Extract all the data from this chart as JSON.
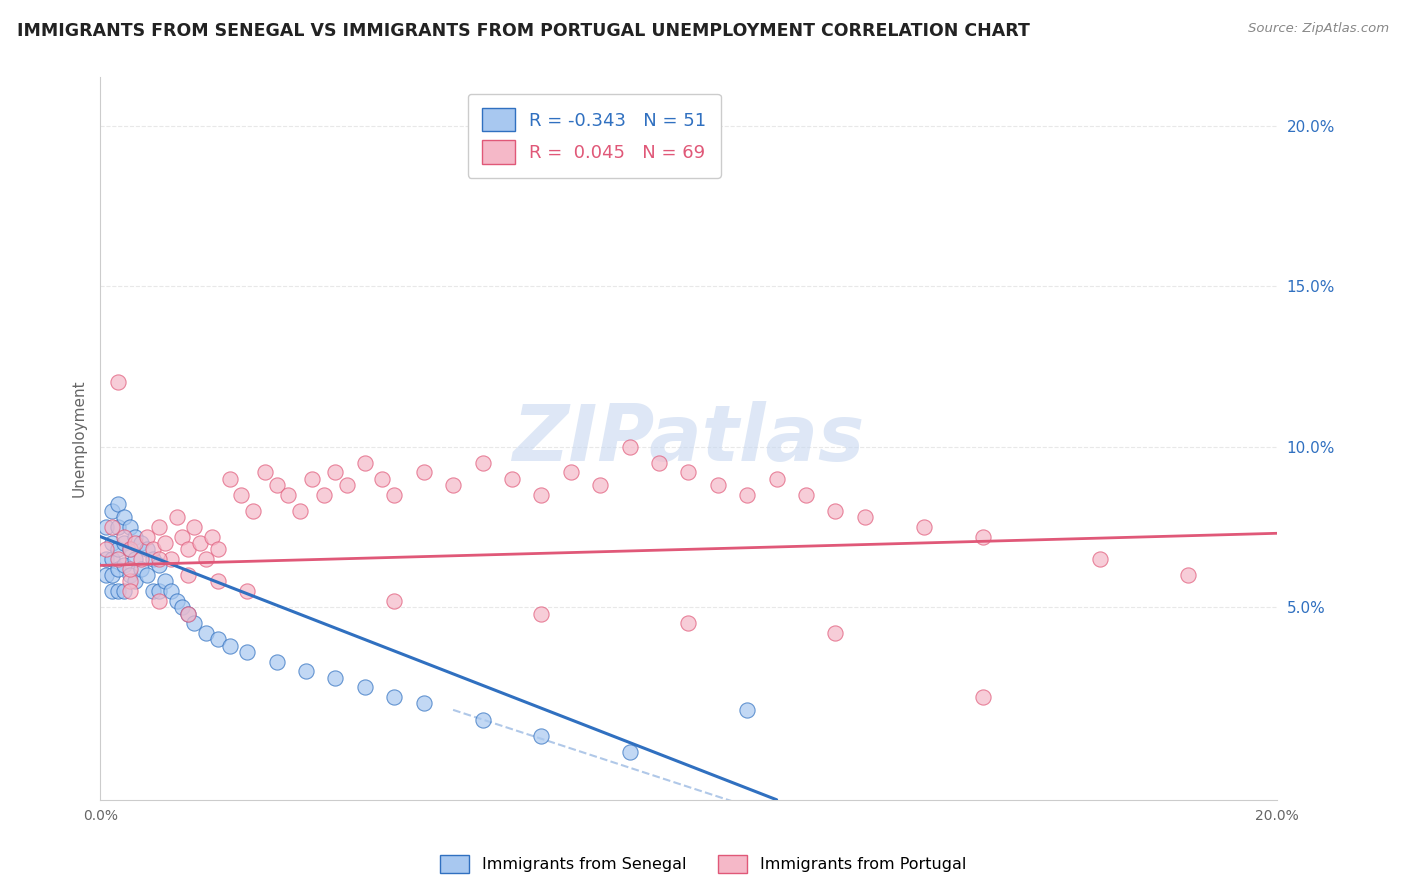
{
  "title": "IMMIGRANTS FROM SENEGAL VS IMMIGRANTS FROM PORTUGAL UNEMPLOYMENT CORRELATION CHART",
  "source": "Source: ZipAtlas.com",
  "ylabel": "Unemployment",
  "y_ticks": [
    0.05,
    0.1,
    0.15,
    0.2
  ],
  "y_tick_labels": [
    "5.0%",
    "10.0%",
    "15.0%",
    "20.0%"
  ],
  "xlim": [
    0.0,
    0.2
  ],
  "ylim": [
    -0.01,
    0.215
  ],
  "senegal_R": -0.343,
  "senegal_N": 51,
  "portugal_R": 0.045,
  "portugal_N": 69,
  "senegal_color": "#a8c8f0",
  "portugal_color": "#f5b8c8",
  "senegal_line_color": "#3070c0",
  "portugal_line_color": "#e05878",
  "dash_color": "#b0c8e8",
  "watermark_color": "#c8d8f0",
  "grid_color": "#e8e8e8",
  "background_color": "#ffffff",
  "senegal_x": [
    0.001,
    0.001,
    0.001,
    0.002,
    0.002,
    0.002,
    0.002,
    0.002,
    0.003,
    0.003,
    0.003,
    0.003,
    0.003,
    0.004,
    0.004,
    0.004,
    0.004,
    0.005,
    0.005,
    0.005,
    0.006,
    0.006,
    0.006,
    0.007,
    0.007,
    0.008,
    0.008,
    0.009,
    0.009,
    0.01,
    0.01,
    0.011,
    0.012,
    0.013,
    0.014,
    0.015,
    0.016,
    0.018,
    0.02,
    0.022,
    0.025,
    0.03,
    0.035,
    0.04,
    0.045,
    0.05,
    0.055,
    0.065,
    0.075,
    0.09,
    0.11
  ],
  "senegal_y": [
    0.075,
    0.065,
    0.06,
    0.08,
    0.07,
    0.065,
    0.06,
    0.055,
    0.082,
    0.075,
    0.068,
    0.062,
    0.055,
    0.078,
    0.07,
    0.063,
    0.055,
    0.075,
    0.068,
    0.06,
    0.072,
    0.065,
    0.058,
    0.07,
    0.062,
    0.068,
    0.06,
    0.065,
    0.055,
    0.063,
    0.055,
    0.058,
    0.055,
    0.052,
    0.05,
    0.048,
    0.045,
    0.042,
    0.04,
    0.038,
    0.036,
    0.033,
    0.03,
    0.028,
    0.025,
    0.022,
    0.02,
    0.015,
    0.01,
    0.005,
    0.018
  ],
  "portugal_x": [
    0.001,
    0.002,
    0.003,
    0.003,
    0.004,
    0.005,
    0.005,
    0.006,
    0.007,
    0.008,
    0.009,
    0.01,
    0.011,
    0.012,
    0.013,
    0.014,
    0.015,
    0.016,
    0.017,
    0.018,
    0.019,
    0.02,
    0.022,
    0.024,
    0.026,
    0.028,
    0.03,
    0.032,
    0.034,
    0.036,
    0.038,
    0.04,
    0.042,
    0.045,
    0.048,
    0.05,
    0.055,
    0.06,
    0.065,
    0.07,
    0.075,
    0.08,
    0.085,
    0.09,
    0.095,
    0.1,
    0.105,
    0.11,
    0.115,
    0.12,
    0.125,
    0.13,
    0.14,
    0.15,
    0.005,
    0.01,
    0.015,
    0.02,
    0.025,
    0.05,
    0.075,
    0.1,
    0.125,
    0.15,
    0.17,
    0.185,
    0.005,
    0.01,
    0.015
  ],
  "portugal_y": [
    0.068,
    0.075,
    0.12,
    0.065,
    0.072,
    0.068,
    0.058,
    0.07,
    0.065,
    0.072,
    0.068,
    0.075,
    0.07,
    0.065,
    0.078,
    0.072,
    0.068,
    0.075,
    0.07,
    0.065,
    0.072,
    0.068,
    0.09,
    0.085,
    0.08,
    0.092,
    0.088,
    0.085,
    0.08,
    0.09,
    0.085,
    0.092,
    0.088,
    0.095,
    0.09,
    0.085,
    0.092,
    0.088,
    0.095,
    0.09,
    0.085,
    0.092,
    0.088,
    0.1,
    0.095,
    0.092,
    0.088,
    0.085,
    0.09,
    0.085,
    0.08,
    0.078,
    0.075,
    0.072,
    0.062,
    0.065,
    0.06,
    0.058,
    0.055,
    0.052,
    0.048,
    0.045,
    0.042,
    0.022,
    0.065,
    0.06,
    0.055,
    0.052,
    0.048
  ]
}
